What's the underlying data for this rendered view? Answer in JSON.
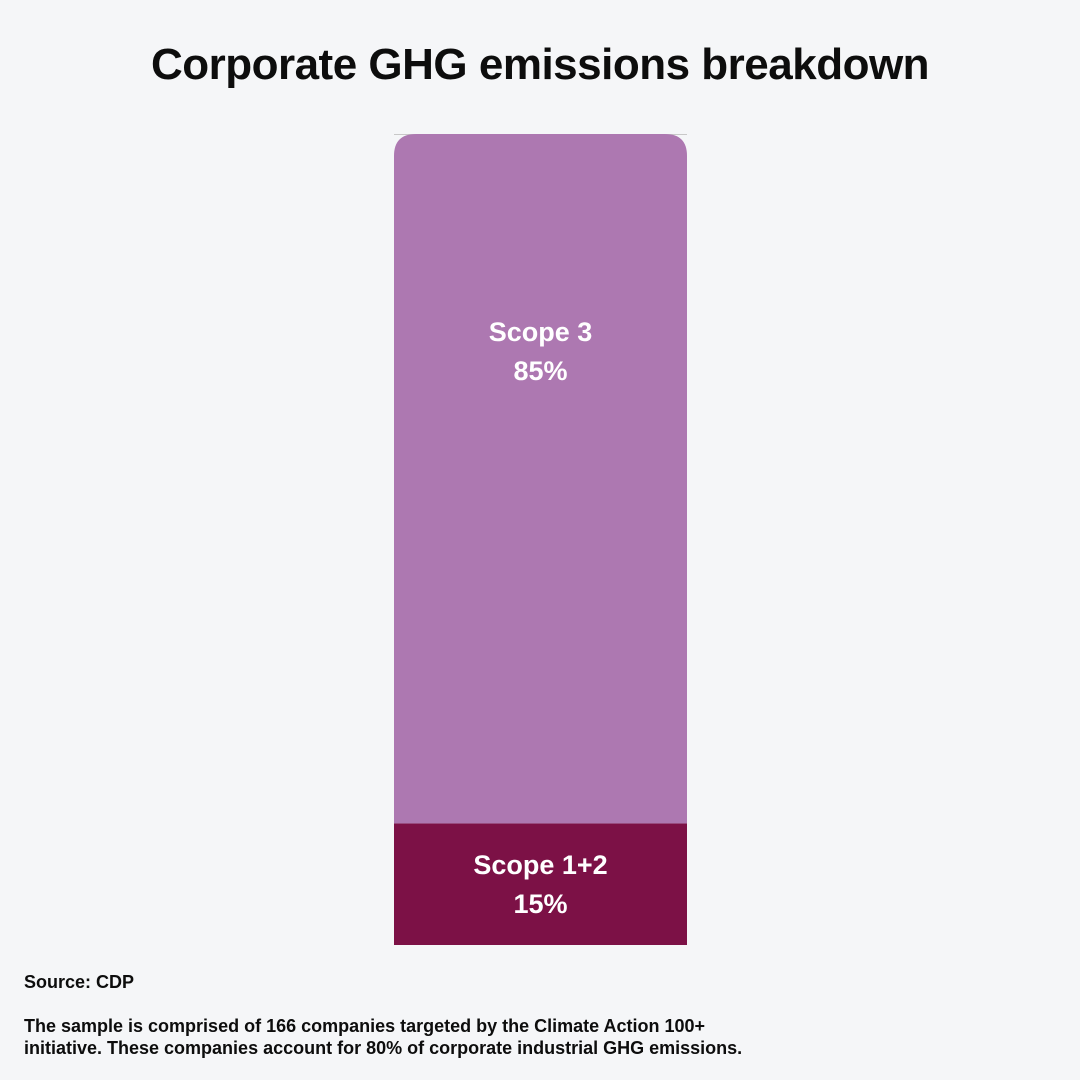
{
  "title": "Corporate GHG emissions breakdown",
  "source": "Source: CDP",
  "note": "The sample is comprised of 166 companies targeted by the Climate Action 100+ initiative. These companies account for 80% of corporate industrial GHG emissions.",
  "colors": {
    "background": "#f5f6f8",
    "scope3": "#ad78b1",
    "scope12": "#7c1146",
    "gridline": "#c8c8c8"
  },
  "chart_data": {
    "type": "bar",
    "stacked": true,
    "orientation": "vertical",
    "ylim": [
      0,
      100
    ],
    "grid": false,
    "legend": "none",
    "series": [
      {
        "name": "Scope 1+2",
        "value": 15,
        "label": "15%",
        "color": "#7c1146"
      },
      {
        "name": "Scope 3",
        "value": 85,
        "label": "85%",
        "color": "#ad78b1"
      }
    ]
  }
}
